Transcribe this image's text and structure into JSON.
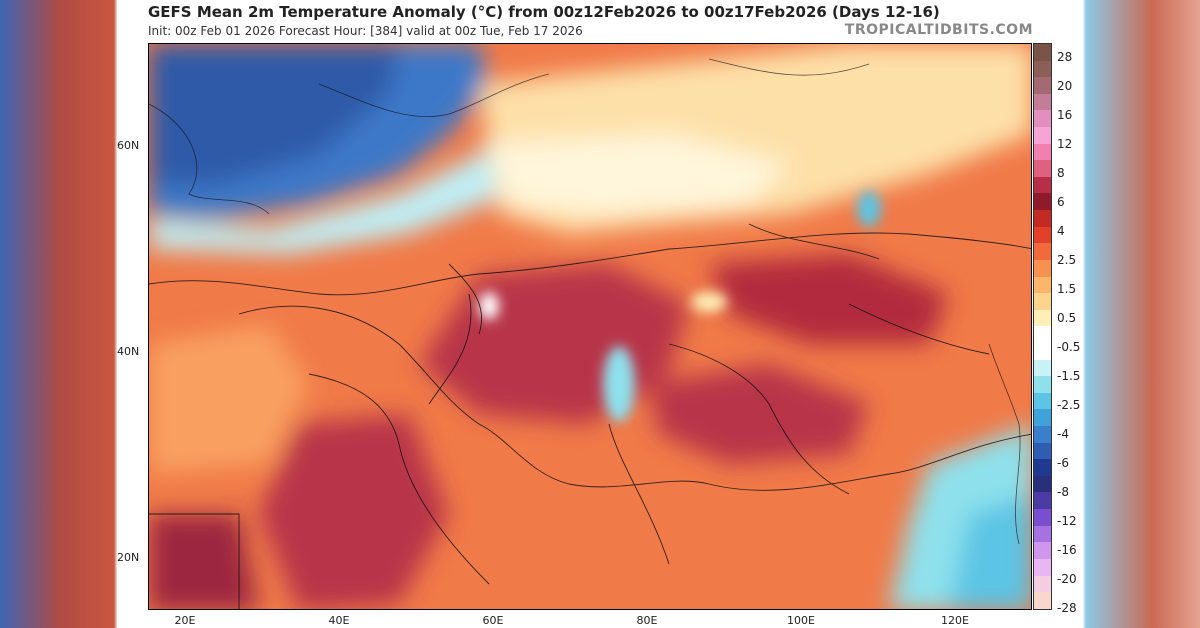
{
  "header": {
    "title": "GEFS Mean 2m Temperature Anomaly (°C) from 00z12Feb2026 to 00z17Feb2026 (Days 12-16)",
    "subtitle": "Init: 00z Feb 01 2026   Forecast Hour: [384]   valid at 00z Tue, Feb 17 2026",
    "credit": "TROPICALTIDBITS.COM"
  },
  "axes": {
    "lat_labels": [
      "60N",
      "40N",
      "20N"
    ],
    "lon_labels": [
      "20E",
      "40E",
      "60E",
      "80E",
      "100E",
      "120E"
    ]
  },
  "colorbar": {
    "labels": [
      "28",
      "20",
      "16",
      "12",
      "8",
      "6",
      "4",
      "2.5",
      "1.5",
      "0.5",
      "-0.5",
      "-1.5",
      "-2.5",
      "-4",
      "-6",
      "-8",
      "-12",
      "-16",
      "-20",
      "-28"
    ],
    "colors": [
      "#7a5448",
      "#8c5e58",
      "#a46a74",
      "#c47d97",
      "#e28fbf",
      "#f5a4d8",
      "#f17fb0",
      "#e0607f",
      "#b82d48",
      "#8e1a2c",
      "#c42a24",
      "#e2402a",
      "#f26a3c",
      "#f79150",
      "#fcb66c",
      "#fed38c",
      "#fff0b8",
      "#ffffff",
      "#ffffff",
      "#c8f2f5",
      "#8ee1ec",
      "#5cc4e4",
      "#3fa3d9",
      "#3b7ecc",
      "#2f5db4",
      "#203a90",
      "#2a2f7c",
      "#4c3aa5",
      "#7b4ed0",
      "#a672e2",
      "#cf96ee",
      "#e8b6f3",
      "#f4cde0",
      "#f8d8cc"
    ]
  },
  "map": {
    "region": "Eurasia",
    "variable": "2m temperature anomaly",
    "units": "°C"
  }
}
